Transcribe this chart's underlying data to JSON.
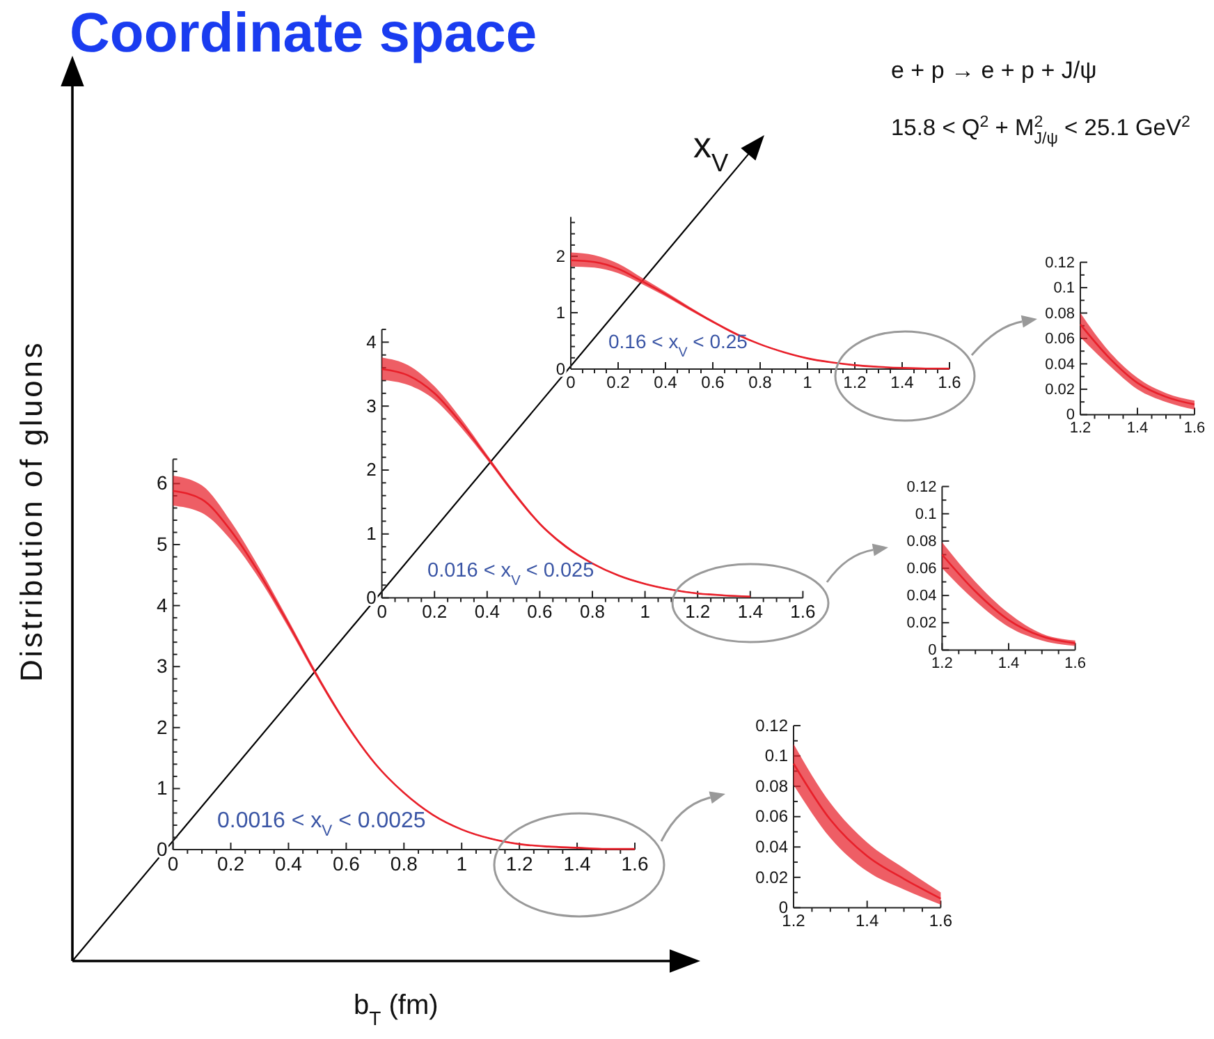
{
  "chart_data": [
    {
      "type": "other",
      "title": "Coordinate space",
      "xlabel": "b$_{T}$ (fm)",
      "ylabel": "Distribution of gluons",
      "annotations": [
        "x$_{V}$",
        "e + p → e + p + J/ψ",
        "15.8 < Q$^{2}$ + M$^{2}$$_{J/ψ}$ < 25.1 GeV$^{2}$"
      ]
    },
    {
      "type": "line",
      "x": [
        0,
        0.1,
        0.2,
        0.3,
        0.4,
        0.5,
        0.6,
        0.7,
        0.8,
        0.9,
        1,
        1.1,
        1.2,
        1.3,
        1.4,
        1.5,
        1.6
      ],
      "series": [
        {
          "color": "#e8202a",
          "values": [
            1.93,
            1.9,
            1.78,
            1.56,
            1.33,
            1.08,
            0.84,
            0.62,
            0.44,
            0.3,
            0.19,
            0.12,
            0.07,
            0.04,
            0.02,
            0.01,
            0.01
          ],
          "lower": [
            1.82,
            1.8,
            1.7,
            1.51,
            1.29,
            1.05,
            0.82,
            0.6,
            0.43,
            0.29,
            0.18,
            0.11,
            0.06,
            0.03,
            0.02,
            0.01,
            0
          ],
          "upper": [
            2.07,
            2.02,
            1.87,
            1.62,
            1.37,
            1.11,
            0.86,
            0.64,
            0.45,
            0.31,
            0.2,
            0.13,
            0.08,
            0.05,
            0.03,
            0.02,
            0.01
          ]
        }
      ],
      "xlim": [
        0,
        1.6
      ],
      "ylim": [
        0,
        2.7
      ],
      "xticks": [
        0,
        {
          "value": 0.05,
          "label": null
        },
        {
          "value": 0.1,
          "label": null
        },
        {
          "value": 0.15,
          "label": null
        },
        0.2,
        {
          "value": 0.25,
          "label": null
        },
        {
          "value": 0.3,
          "label": null
        },
        {
          "value": 0.35,
          "label": null
        },
        0.4,
        {
          "value": 0.45,
          "label": null
        },
        {
          "value": 0.5,
          "label": null
        },
        {
          "value": 0.55,
          "label": null
        },
        0.6,
        {
          "value": 0.65,
          "label": null
        },
        {
          "value": 0.7,
          "label": null
        },
        {
          "value": 0.75,
          "label": null
        },
        0.8,
        {
          "value": 0.85,
          "label": null
        },
        {
          "value": 0.9,
          "label": null
        },
        {
          "value": 0.95,
          "label": null
        },
        1,
        {
          "value": 1.05,
          "label": null
        },
        {
          "value": 1.1,
          "label": null
        },
        {
          "value": 1.15,
          "label": null
        },
        1.2,
        {
          "value": 1.25,
          "label": null
        },
        {
          "value": 1.3,
          "label": null
        },
        {
          "value": 1.35,
          "label": null
        },
        1.4,
        {
          "value": 1.45,
          "label": null
        },
        {
          "value": 1.5,
          "label": null
        },
        {
          "value": 1.55,
          "label": null
        },
        1.6
      ],
      "yticks": [
        0,
        {
          "value": 0.2,
          "label": null
        },
        {
          "value": 0.4,
          "label": null
        },
        {
          "value": 0.6,
          "label": null
        },
        {
          "value": 0.8,
          "label": null
        },
        1,
        {
          "value": 1.2,
          "label": null
        },
        {
          "value": 1.4,
          "label": null
        },
        {
          "value": 1.6,
          "label": null
        },
        {
          "value": 1.8,
          "label": null
        },
        2,
        {
          "value": 2.2,
          "label": null
        },
        {
          "value": 2.4,
          "label": null
        },
        {
          "value": 2.6,
          "label": null
        }
      ],
      "annotations": [
        "0.16 < x$_{V}$ < 0.25"
      ]
    },
    {
      "type": "line",
      "x": [
        1.2,
        1.3,
        1.4,
        1.5,
        1.6
      ],
      "series": [
        {
          "color": "#e8202a",
          "values": [
            0.071,
            0.045,
            0.025,
            0.014,
            0.008
          ],
          "lower": [
            0.061,
            0.039,
            0.02,
            0.01,
            0.004
          ],
          "upper": [
            0.08,
            0.05,
            0.029,
            0.017,
            0.011
          ]
        }
      ],
      "xlim": [
        1.2,
        1.6
      ],
      "ylim": [
        0,
        0.12
      ],
      "xticks": [
        1.2,
        {
          "value": 1.25,
          "label": null
        },
        {
          "value": 1.3,
          "label": null
        },
        {
          "value": 1.35,
          "label": null
        },
        1.4,
        {
          "value": 1.45,
          "label": null
        },
        {
          "value": 1.5,
          "label": null
        },
        {
          "value": 1.55,
          "label": null
        },
        1.6
      ],
      "yticks": [
        0,
        {
          "value": 0.01,
          "label": null
        },
        0.02,
        {
          "value": 0.03,
          "label": null
        },
        0.04,
        {
          "value": 0.05,
          "label": null
        },
        0.06,
        {
          "value": 0.07,
          "label": null
        },
        0.08,
        {
          "value": 0.09,
          "label": null
        },
        0.1,
        {
          "value": 0.11,
          "label": null
        },
        0.12
      ]
    },
    {
      "type": "line",
      "x": [
        0,
        0.1,
        0.2,
        0.3,
        0.4,
        0.5,
        0.6,
        0.7,
        0.8,
        0.9,
        1,
        1.1,
        1.2,
        1.3,
        1.4
      ],
      "series": [
        {
          "color": "#e8202a",
          "values": [
            3.58,
            3.48,
            3.2,
            2.74,
            2.2,
            1.65,
            1.16,
            0.8,
            0.54,
            0.35,
            0.22,
            0.13,
            0.07,
            0.04,
            0.02
          ],
          "lower": [
            3.41,
            3.33,
            3.1,
            2.67,
            2.16,
            1.62,
            1.14,
            0.78,
            0.53,
            0.34,
            0.21,
            0.12,
            0.06,
            0.03,
            0.01
          ],
          "upper": [
            3.76,
            3.64,
            3.31,
            2.81,
            2.24,
            1.68,
            1.18,
            0.82,
            0.55,
            0.36,
            0.23,
            0.14,
            0.08,
            0.05,
            0.03
          ]
        }
      ],
      "xlim": [
        0,
        1.6
      ],
      "ylim": [
        0,
        4.2
      ],
      "xticks": [
        0,
        {
          "value": 0.05,
          "label": null
        },
        {
          "value": 0.1,
          "label": null
        },
        {
          "value": 0.15,
          "label": null
        },
        0.2,
        {
          "value": 0.25,
          "label": null
        },
        {
          "value": 0.3,
          "label": null
        },
        {
          "value": 0.35,
          "label": null
        },
        0.4,
        {
          "value": 0.45,
          "label": null
        },
        {
          "value": 0.5,
          "label": null
        },
        {
          "value": 0.55,
          "label": null
        },
        0.6,
        {
          "value": 0.65,
          "label": null
        },
        {
          "value": 0.7,
          "label": null
        },
        {
          "value": 0.75,
          "label": null
        },
        0.8,
        {
          "value": 0.85,
          "label": null
        },
        {
          "value": 0.9,
          "label": null
        },
        {
          "value": 0.95,
          "label": null
        },
        1,
        {
          "value": 1.05,
          "label": null
        },
        {
          "value": 1.1,
          "label": null
        },
        {
          "value": 1.15,
          "label": null
        },
        1.2,
        {
          "value": 1.25,
          "label": null
        },
        {
          "value": 1.3,
          "label": null
        },
        {
          "value": 1.35,
          "label": null
        },
        1.4,
        {
          "value": 1.45,
          "label": null
        },
        {
          "value": 1.5,
          "label": null
        },
        {
          "value": 1.55,
          "label": null
        },
        1.6
      ],
      "yticks": [
        0,
        {
          "value": 0.2,
          "label": null
        },
        {
          "value": 0.4,
          "label": null
        },
        {
          "value": 0.6,
          "label": null
        },
        {
          "value": 0.8,
          "label": null
        },
        1,
        {
          "value": 1.2,
          "label": null
        },
        {
          "value": 1.4,
          "label": null
        },
        {
          "value": 1.6,
          "label": null
        },
        {
          "value": 1.8,
          "label": null
        },
        2,
        {
          "value": 2.2,
          "label": null
        },
        {
          "value": 2.4,
          "label": null
        },
        {
          "value": 2.6,
          "label": null
        },
        {
          "value": 2.8,
          "label": null
        },
        3,
        {
          "value": 3.2,
          "label": null
        },
        {
          "value": 3.4,
          "label": null
        },
        {
          "value": 3.6,
          "label": null
        },
        {
          "value": 3.8,
          "label": null
        },
        4,
        {
          "value": 4.2,
          "label": null
        }
      ],
      "annotations": [
        "0.016 < x$_{V}$ < 0.025"
      ]
    },
    {
      "type": "line",
      "x": [
        1.2,
        1.3,
        1.4,
        1.5,
        1.6
      ],
      "series": [
        {
          "color": "#e8202a",
          "values": [
            0.07,
            0.043,
            0.022,
            0.01,
            0.005
          ],
          "lower": [
            0.06,
            0.036,
            0.017,
            0.007,
            0.003
          ],
          "upper": [
            0.079,
            0.05,
            0.027,
            0.012,
            0.007
          ]
        }
      ],
      "xlim": [
        1.2,
        1.6
      ],
      "ylim": [
        0,
        0.12
      ],
      "xticks": [
        1.2,
        {
          "value": 1.25,
          "label": null
        },
        {
          "value": 1.3,
          "label": null
        },
        {
          "value": 1.35,
          "label": null
        },
        1.4,
        {
          "value": 1.45,
          "label": null
        },
        {
          "value": 1.5,
          "label": null
        },
        {
          "value": 1.55,
          "label": null
        },
        1.6
      ],
      "yticks": [
        0,
        {
          "value": 0.01,
          "label": null
        },
        0.02,
        {
          "value": 0.03,
          "label": null
        },
        0.04,
        {
          "value": 0.05,
          "label": null
        },
        0.06,
        {
          "value": 0.07,
          "label": null
        },
        0.08,
        {
          "value": 0.09,
          "label": null
        },
        0.1,
        {
          "value": 0.11,
          "label": null
        },
        0.12
      ]
    },
    {
      "type": "line",
      "x": [
        0,
        0.1,
        0.2,
        0.3,
        0.4,
        0.5,
        0.6,
        0.7,
        0.8,
        0.9,
        1,
        1.1,
        1.2,
        1.3,
        1.4,
        1.5,
        1.6
      ],
      "series": [
        {
          "color": "#e8202a",
          "values": [
            5.88,
            5.74,
            5.23,
            4.52,
            3.7,
            2.84,
            2.06,
            1.41,
            0.93,
            0.57,
            0.33,
            0.18,
            0.09,
            0.05,
            0.03,
            0.01,
            0.01
          ],
          "lower": [
            5.64,
            5.52,
            5.08,
            4.43,
            3.64,
            2.8,
            2.03,
            1.39,
            0.92,
            0.56,
            0.32,
            0.17,
            0.08,
            0.04,
            0.02,
            0.01,
            0
          ],
          "upper": [
            6.13,
            5.97,
            5.38,
            4.61,
            3.76,
            2.88,
            2.09,
            1.43,
            0.94,
            0.58,
            0.34,
            0.19,
            0.1,
            0.06,
            0.04,
            0.02,
            0.01
          ]
        }
      ],
      "xlim": [
        0,
        1.6
      ],
      "ylim": [
        0,
        6.4
      ],
      "xticks": [
        0,
        {
          "value": 0.05,
          "label": null
        },
        {
          "value": 0.1,
          "label": null
        },
        {
          "value": 0.15,
          "label": null
        },
        0.2,
        {
          "value": 0.25,
          "label": null
        },
        {
          "value": 0.3,
          "label": null
        },
        {
          "value": 0.35,
          "label": null
        },
        0.4,
        {
          "value": 0.45,
          "label": null
        },
        {
          "value": 0.5,
          "label": null
        },
        {
          "value": 0.55,
          "label": null
        },
        0.6,
        {
          "value": 0.65,
          "label": null
        },
        {
          "value": 0.7,
          "label": null
        },
        {
          "value": 0.75,
          "label": null
        },
        0.8,
        {
          "value": 0.85,
          "label": null
        },
        {
          "value": 0.9,
          "label": null
        },
        {
          "value": 0.95,
          "label": null
        },
        1,
        {
          "value": 1.05,
          "label": null
        },
        {
          "value": 1.1,
          "label": null
        },
        {
          "value": 1.15,
          "label": null
        },
        1.2,
        {
          "value": 1.25,
          "label": null
        },
        {
          "value": 1.3,
          "label": null
        },
        {
          "value": 1.35,
          "label": null
        },
        1.4,
        {
          "value": 1.45,
          "label": null
        },
        {
          "value": 1.5,
          "label": null
        },
        {
          "value": 1.55,
          "label": null
        },
        1.6
      ],
      "yticks": [
        0,
        {
          "value": 0.2,
          "label": null
        },
        {
          "value": 0.4,
          "label": null
        },
        {
          "value": 0.6,
          "label": null
        },
        {
          "value": 0.8,
          "label": null
        },
        1,
        {
          "value": 1.2,
          "label": null
        },
        {
          "value": 1.4,
          "label": null
        },
        {
          "value": 1.6,
          "label": null
        },
        {
          "value": 1.8,
          "label": null
        },
        2,
        {
          "value": 2.2,
          "label": null
        },
        {
          "value": 2.4,
          "label": null
        },
        {
          "value": 2.6,
          "label": null
        },
        {
          "value": 2.8,
          "label": null
        },
        3,
        {
          "value": 3.2,
          "label": null
        },
        {
          "value": 3.4,
          "label": null
        },
        {
          "value": 3.6,
          "label": null
        },
        {
          "value": 3.8,
          "label": null
        },
        4,
        {
          "value": 4.2,
          "label": null
        },
        {
          "value": 4.4,
          "label": null
        },
        {
          "value": 4.6,
          "label": null
        },
        {
          "value": 4.8,
          "label": null
        },
        5,
        {
          "value": 5.2,
          "label": null
        },
        {
          "value": 5.4,
          "label": null
        },
        {
          "value": 5.6,
          "label": null
        },
        {
          "value": 5.8,
          "label": null
        },
        6,
        {
          "value": 6.2,
          "label": null
        },
        {
          "value": 6.4,
          "label": null
        }
      ],
      "annotations": [
        "0.0016 < x$_{V}$ < 0.0025"
      ]
    },
    {
      "type": "line",
      "x": [
        1.2,
        1.3,
        1.4,
        1.5,
        1.6
      ],
      "series": [
        {
          "color": "#e8202a",
          "values": [
            0.095,
            0.058,
            0.034,
            0.019,
            0.006
          ],
          "lower": [
            0.081,
            0.046,
            0.024,
            0.012,
            0.002
          ],
          "upper": [
            0.108,
            0.069,
            0.043,
            0.026,
            0.01
          ]
        }
      ],
      "xlim": [
        1.2,
        1.6
      ],
      "ylim": [
        0,
        0.12
      ],
      "xticks": [
        1.2,
        {
          "value": 1.25,
          "label": null
        },
        {
          "value": 1.3,
          "label": null
        },
        {
          "value": 1.35,
          "label": null
        },
        1.4,
        {
          "value": 1.45,
          "label": null
        },
        {
          "value": 1.5,
          "label": null
        },
        {
          "value": 1.55,
          "label": null
        },
        1.6
      ],
      "yticks": [
        0,
        {
          "value": 0.01,
          "label": null
        },
        0.02,
        {
          "value": 0.03,
          "label": null
        },
        0.04,
        {
          "value": 0.05,
          "label": null
        },
        0.06,
        {
          "value": 0.07,
          "label": null
        },
        0.08,
        {
          "value": 0.09,
          "label": null
        },
        0.1,
        {
          "value": 0.11,
          "label": null
        },
        0.12
      ]
    }
  ]
}
